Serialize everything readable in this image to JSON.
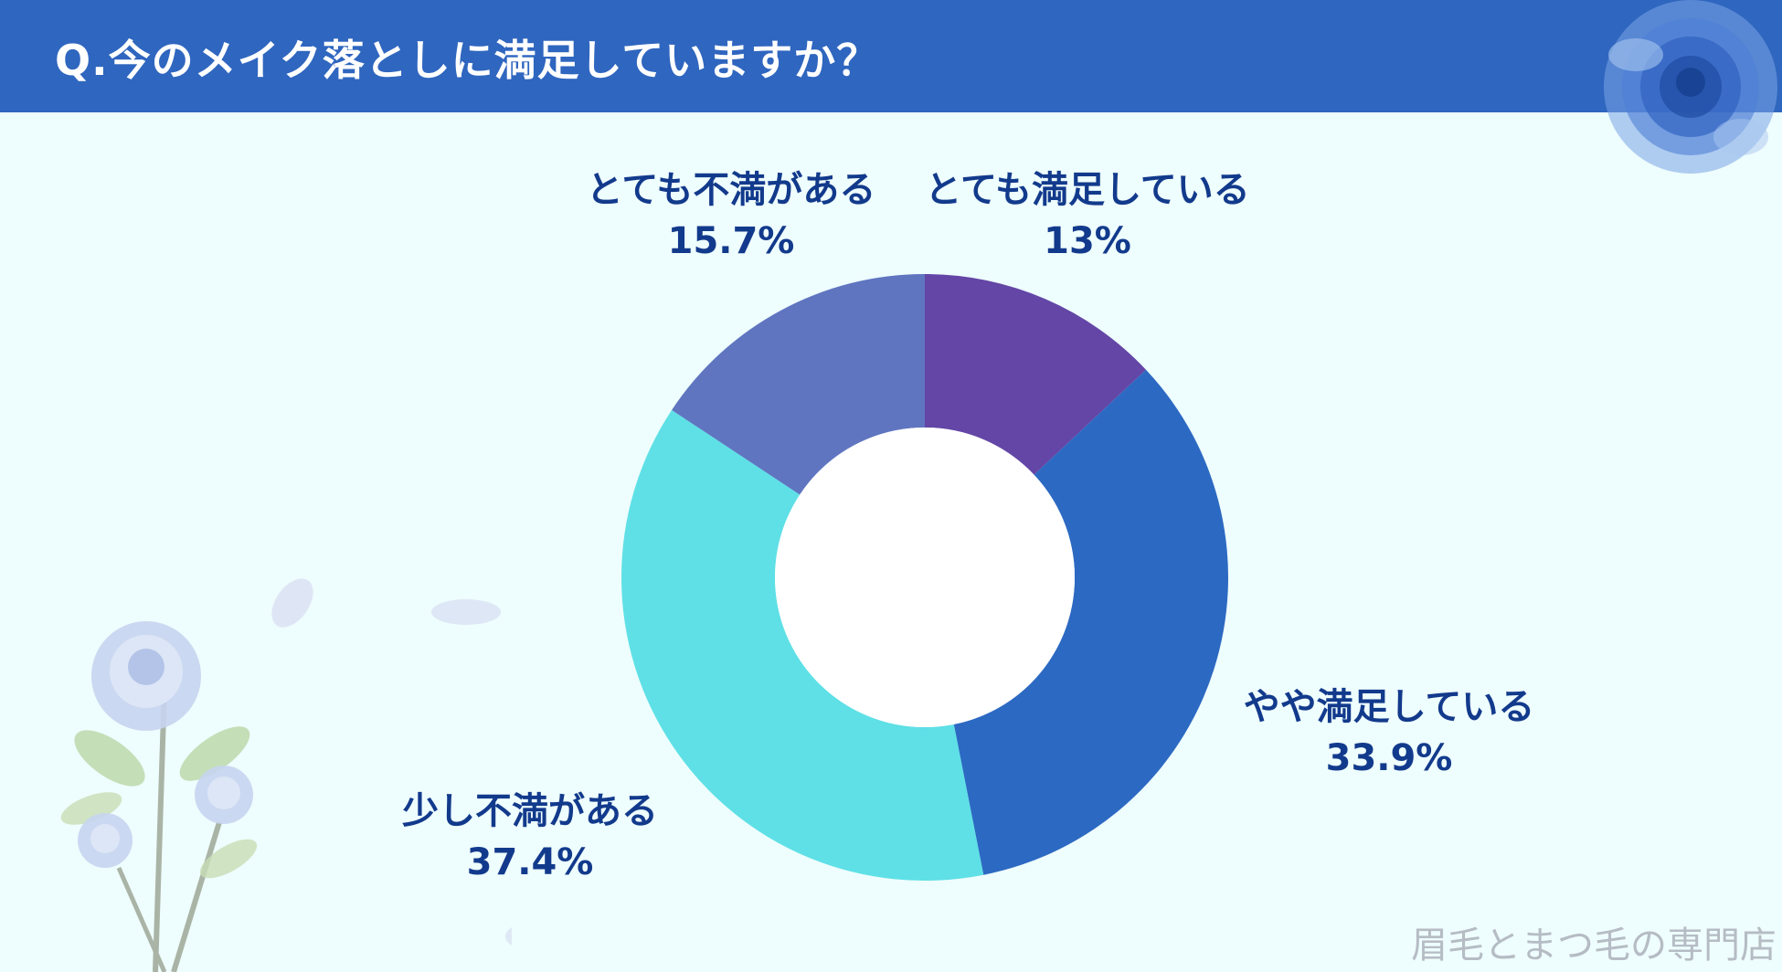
{
  "header": {
    "title": "Q.今のメイク落としに満足していますか？"
  },
  "chart_data": {
    "type": "pie",
    "donut": true,
    "categories": [
      "とても満足している",
      "やや満足している",
      "少し不満がある",
      "とても不満がある"
    ],
    "values": [
      13,
      33.9,
      37.4,
      15.7
    ],
    "value_labels": [
      "13%",
      "33.9%",
      "37.4%",
      "15.7%"
    ],
    "colors": [
      "#6346a6",
      "#2c69c2",
      "#5ee0e6",
      "#5f75c0"
    ],
    "start": "top, clockwise"
  },
  "watermark": "眉毛とまつ毛の専門店"
}
